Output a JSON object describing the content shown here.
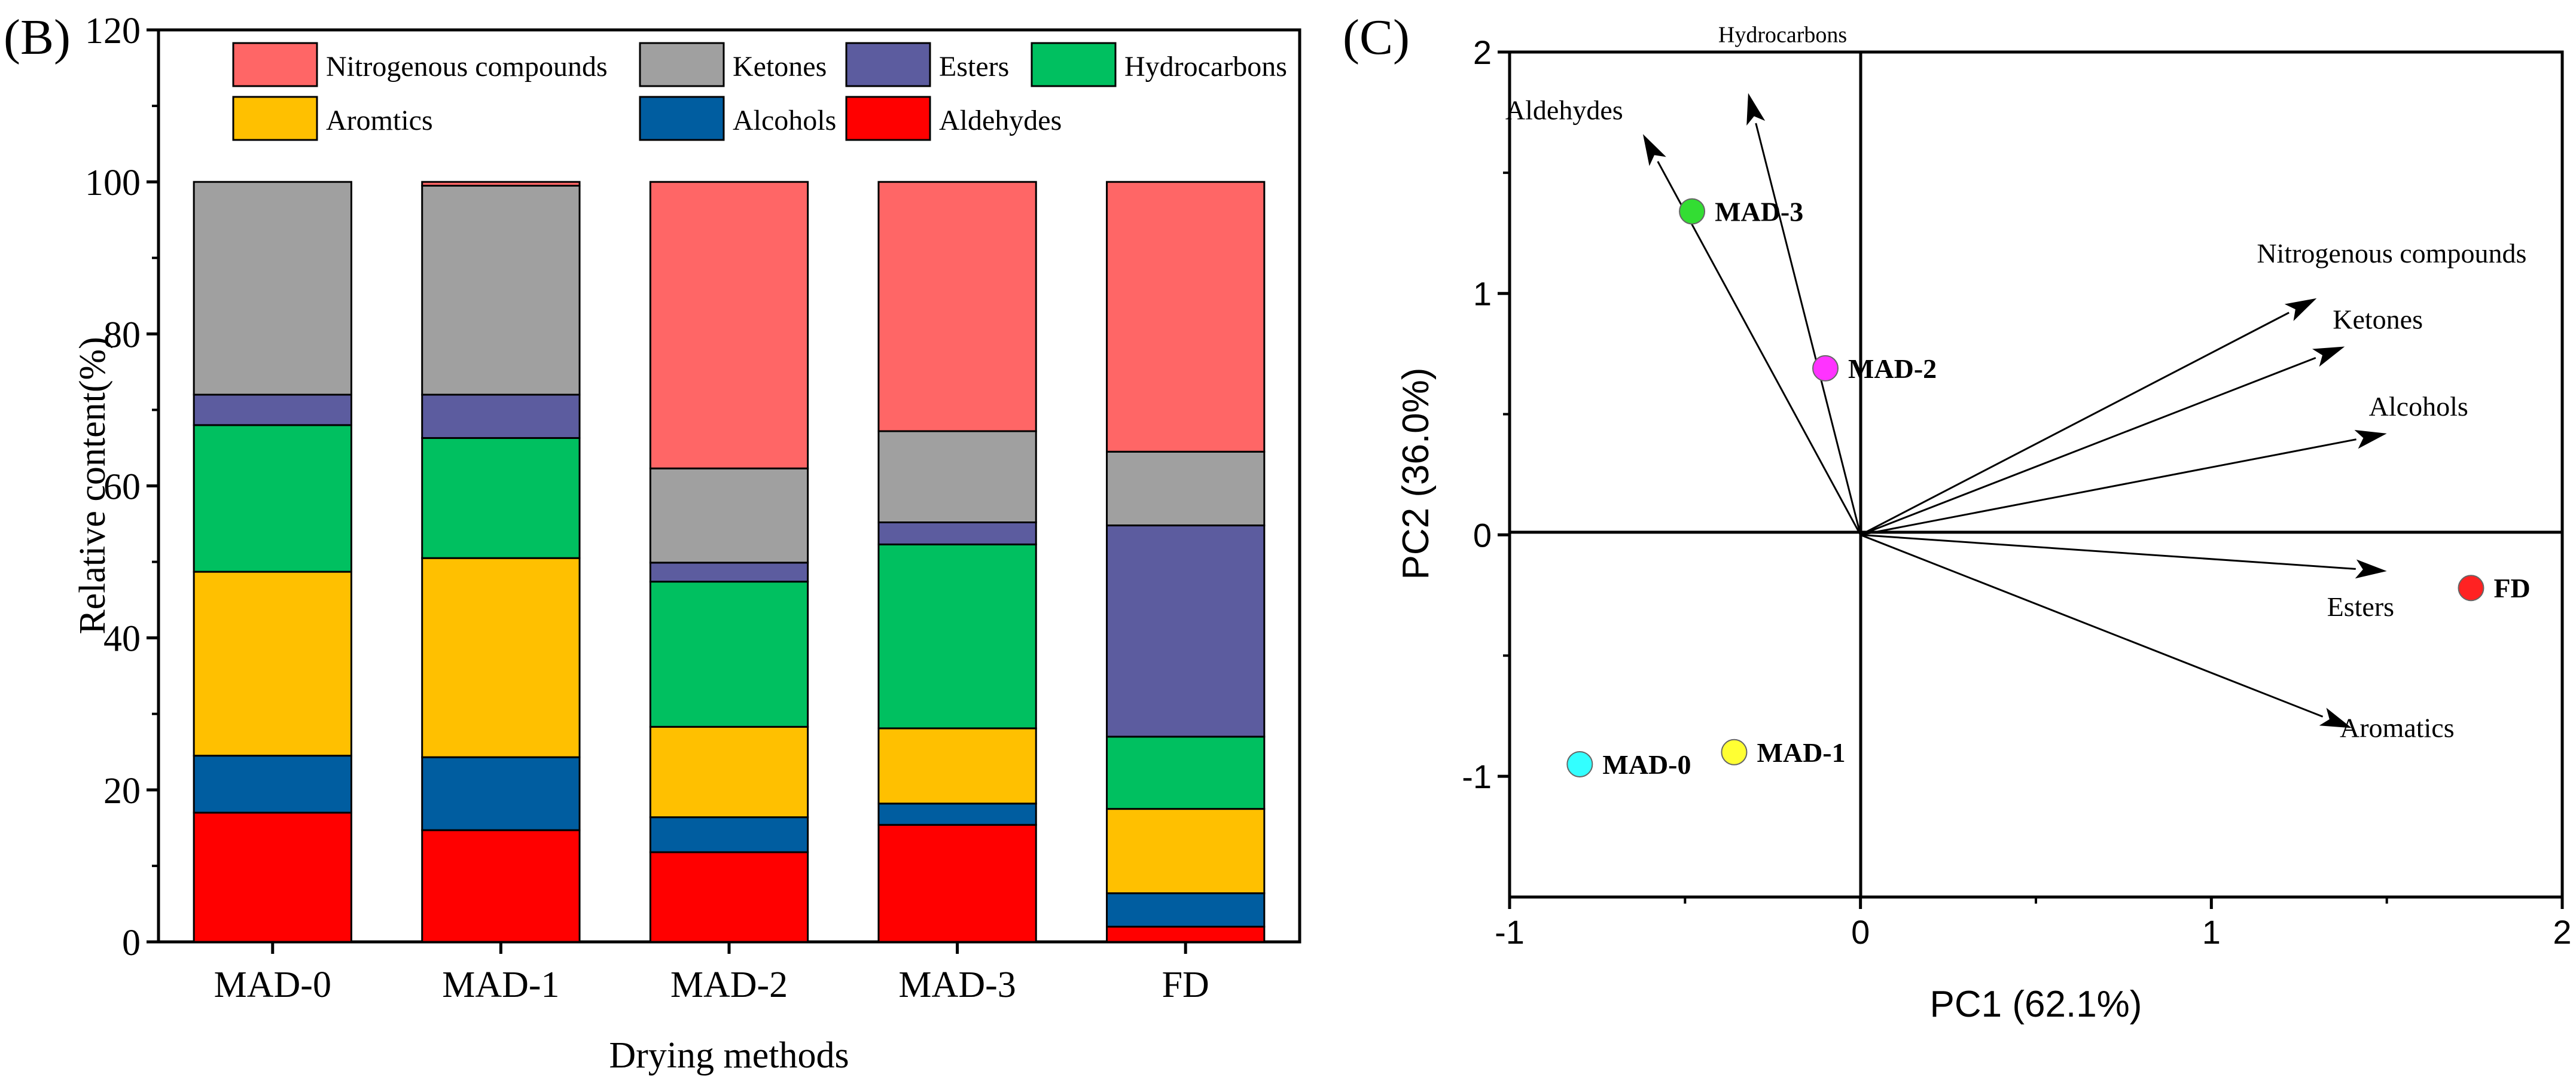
{
  "panel_b": {
    "label": "(B)",
    "chart_data": {
      "type": "bar",
      "stacked": true,
      "categories": [
        "MAD-0",
        "MAD-1",
        "MAD-2",
        "MAD-3",
        "FD"
      ],
      "xlabel": "Drying methods",
      "ylabel": "Relative content(%)",
      "ylim": [
        0,
        120
      ],
      "yticks": [
        0,
        20,
        40,
        60,
        80,
        100,
        120
      ],
      "series": [
        {
          "name": "Aldehydes",
          "color": "#ff0000",
          "values": [
            17.0,
            14.7,
            11.8,
            15.4,
            2.0
          ]
        },
        {
          "name": "Alcohols",
          "color": "#005da0",
          "values": [
            7.5,
            9.6,
            4.6,
            2.8,
            4.4
          ]
        },
        {
          "name": "Aromtics",
          "color": "#ffc000",
          "values": [
            24.2,
            26.2,
            11.9,
            9.9,
            11.1
          ]
        },
        {
          "name": "Hydrocarbons",
          "color": "#00c060",
          "values": [
            19.3,
            15.8,
            19.1,
            24.2,
            9.5
          ]
        },
        {
          "name": "Esters",
          "color": "#5c5c9f",
          "values": [
            4.0,
            5.7,
            2.5,
            2.9,
            27.8
          ]
        },
        {
          "name": "Ketones",
          "color": "#a0a0a0",
          "values": [
            28.0,
            27.5,
            12.4,
            12.0,
            9.7
          ]
        },
        {
          "name": "Nitrogenous compounds",
          "color": "#ff6666",
          "values": [
            0.0,
            0.5,
            37.7,
            32.8,
            35.5
          ]
        }
      ],
      "legend_order": [
        "Nitrogenous compounds",
        "Ketones",
        "Esters",
        "Hydrocarbons",
        "Aromtics",
        "Alcohols",
        "Aldehydes"
      ],
      "legend_position": "top"
    }
  },
  "panel_c": {
    "label": "(C)",
    "chart_data": {
      "type": "scatter",
      "subtype": "biplot",
      "xlabel": "PC1 (62.1%)",
      "ylabel": "PC2 (36.0%)",
      "xlim": [
        -1,
        2
      ],
      "ylim": [
        -1.5,
        2
      ],
      "xticks": [
        -1,
        0,
        1,
        2
      ],
      "yticks": [
        -1,
        0,
        1,
        2
      ],
      "points": [
        {
          "name": "MAD-0",
          "x": -0.8,
          "y": -0.95,
          "color": "#33ffff"
        },
        {
          "name": "MAD-1",
          "x": -0.36,
          "y": -0.9,
          "color": "#ffff33"
        },
        {
          "name": "MAD-2",
          "x": -0.1,
          "y": 0.69,
          "color": "#ff33ff"
        },
        {
          "name": "MAD-3",
          "x": -0.48,
          "y": 1.34,
          "color": "#33dd33"
        },
        {
          "name": "FD",
          "x": 1.74,
          "y": -0.22,
          "color": "#ff2222"
        }
      ],
      "vectors": [
        {
          "name": "Nitrogenous compounds",
          "x": 1.3,
          "y": 0.98
        },
        {
          "name": "Ketones",
          "x": 1.38,
          "y": 0.78
        },
        {
          "name": "Alcohols",
          "x": 1.5,
          "y": 0.42
        },
        {
          "name": "Esters",
          "x": 1.5,
          "y": -0.15
        },
        {
          "name": "Aromatics",
          "x": 1.4,
          "y": -0.8
        },
        {
          "name": "Aldehydes",
          "x": -0.62,
          "y": 1.66
        },
        {
          "name": "Hydrocarbons",
          "x": -0.32,
          "y": 1.83
        }
      ]
    }
  }
}
